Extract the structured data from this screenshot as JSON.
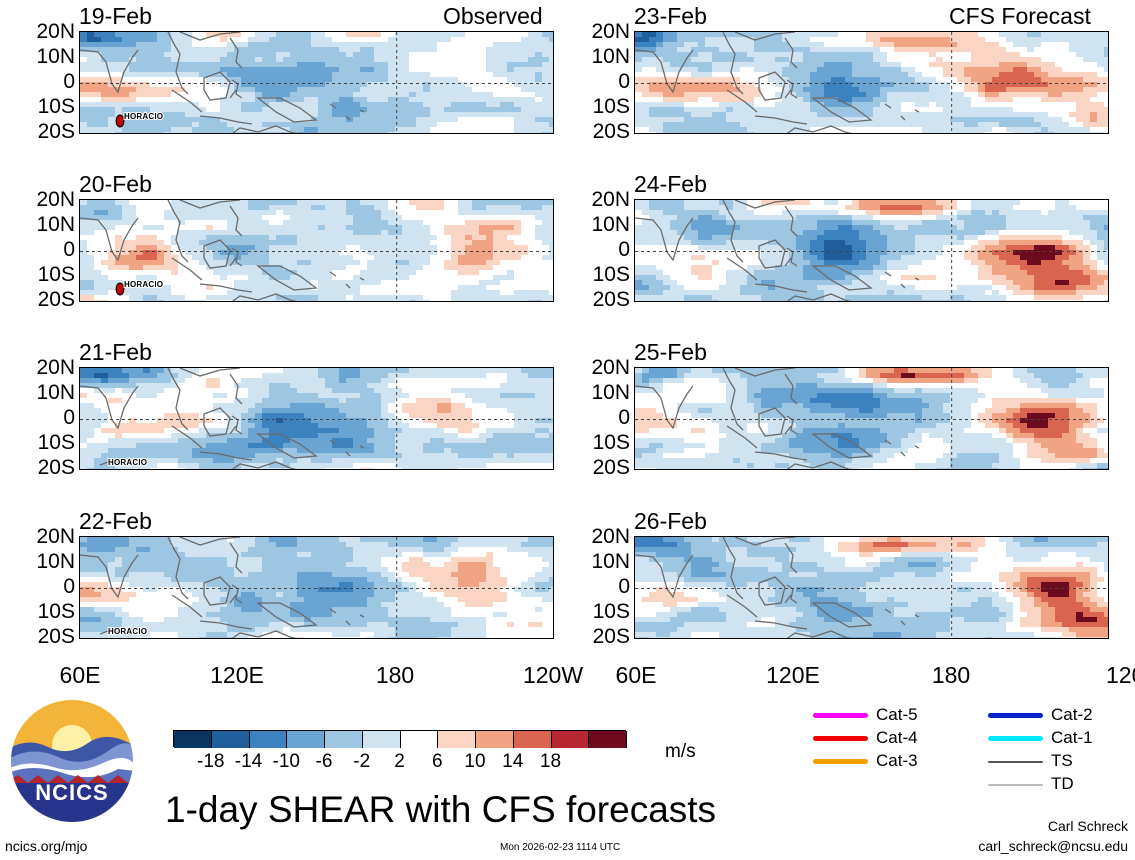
{
  "title": "1-day SHEAR with CFS forecasts",
  "corner_labels": {
    "left": "Observed",
    "right": "CFS Forecast"
  },
  "lat_labels": [
    "20N",
    "10N",
    "0",
    "10S",
    "20S"
  ],
  "lon_labels": [
    "60E",
    "120E",
    "180",
    "120W"
  ],
  "units": "m/s",
  "footer": {
    "url": "ncics.org/mjo",
    "timestamp": "Mon 2026-02-23 1114 UTC",
    "author": "Carl Schreck",
    "email": "carl_schreck@ncsu.edu"
  },
  "logo": {
    "text": "NCICS"
  },
  "storm_name": "HORACIO",
  "legend": [
    {
      "label": "Cat-5",
      "color": "#ff00ff"
    },
    {
      "label": "Cat-4",
      "color": "#ee0000"
    },
    {
      "label": "Cat-3",
      "color": "#f0a000"
    },
    {
      "label": "Cat-2",
      "color": "#0022cc"
    },
    {
      "label": "Cat-1",
      "color": "#00e8ff"
    },
    {
      "label": "TS",
      "color": "#555555"
    },
    {
      "label": "TD",
      "color": "#bbbbbb"
    }
  ],
  "colorbar": {
    "colors": [
      "#0a3560",
      "#1f5e9a",
      "#3b82bf",
      "#6aa4d2",
      "#9cc6e2",
      "#cfe3f0",
      "#ffffff",
      "#fbd5c3",
      "#f0a483",
      "#d9644f",
      "#b52532",
      "#6e0a1e"
    ],
    "ticks": [
      "-18",
      "-14",
      "-10",
      "-6",
      "-2",
      "2",
      "6",
      "10",
      "14",
      "18"
    ]
  },
  "chart_data": {
    "type": "heatmap",
    "title": "1-day SHEAR with CFS forecasts",
    "variable": "vertical wind shear",
    "units": "m/s",
    "x_range": [
      "60E",
      "120W"
    ],
    "y_range": [
      "20S",
      "20N"
    ],
    "contour_levels": [
      -18,
      -14,
      -10,
      -6,
      -2,
      2,
      6,
      10,
      14,
      18
    ],
    "panels": [
      {
        "date": "19-Feb",
        "source": "Observed",
        "storm": "HORACIO",
        "pattern": 0
      },
      {
        "date": "20-Feb",
        "source": "Observed",
        "storm": "HORACIO",
        "pattern": 1
      },
      {
        "date": "21-Feb",
        "source": "Observed",
        "storm": "HORACIO",
        "pattern": 2
      },
      {
        "date": "22-Feb",
        "source": "Observed",
        "storm": "HORACIO",
        "pattern": 3
      },
      {
        "date": "23-Feb",
        "source": "CFS Forecast",
        "pattern": 4
      },
      {
        "date": "24-Feb",
        "source": "CFS Forecast",
        "pattern": 5
      },
      {
        "date": "25-Feb",
        "source": "CFS Forecast",
        "pattern": 6
      },
      {
        "date": "26-Feb",
        "source": "CFS Forecast",
        "pattern": 7
      }
    ]
  }
}
